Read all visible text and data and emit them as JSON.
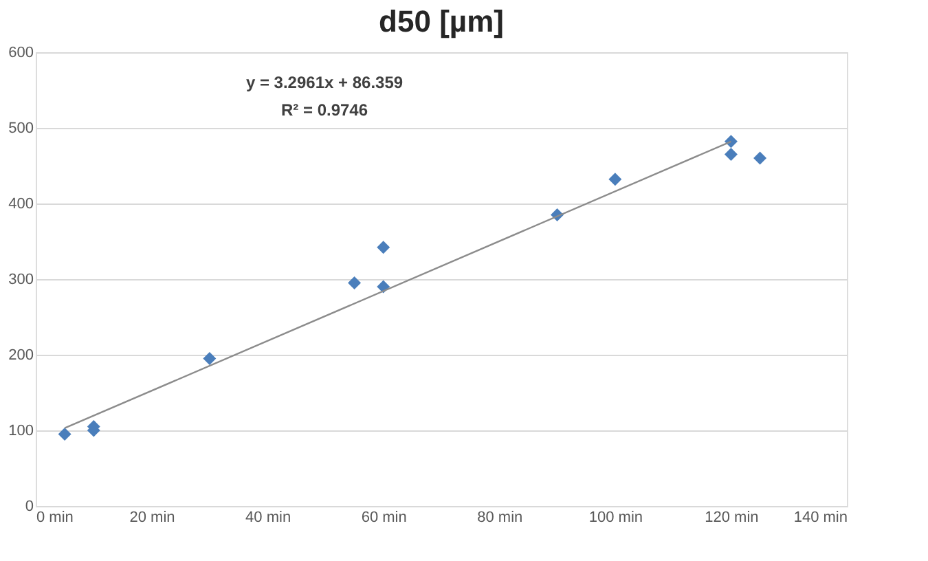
{
  "chart_data": {
    "type": "scatter",
    "title": "d50 [µm]",
    "series": [
      {
        "color": "#4a7ebb",
        "marker": "diamond",
        "x": [
          5,
          10,
          10,
          30,
          55,
          60,
          60,
          90,
          100,
          120,
          120,
          125
        ],
        "values": [
          95,
          100,
          105,
          195,
          295,
          290,
          342,
          385,
          432,
          482,
          465,
          460
        ]
      },
      {
        "type": "line",
        "color": "#8c8c8c",
        "marker": "none",
        "line_style": "solid",
        "x": [
          5,
          120
        ],
        "values": [
          103,
          482
        ]
      }
    ],
    "xlim": [
      0,
      140
    ],
    "xticks": [
      {
        "value": 0,
        "label": "0 min"
      },
      {
        "value": 20,
        "label": "20 min"
      },
      {
        "value": 40,
        "label": "40 min"
      },
      {
        "value": 60,
        "label": "60 min"
      },
      {
        "value": 80,
        "label": "80 min"
      },
      {
        "value": 100,
        "label": "100 min"
      },
      {
        "value": 120,
        "label": "120 min"
      },
      {
        "value": 140,
        "label": "140 min"
      }
    ],
    "ylim": [
      0,
      600
    ],
    "yticks": [
      0,
      100,
      200,
      300,
      400,
      500,
      600
    ],
    "grid": "y",
    "annotations": [
      "y = 3.2961x + 86.359",
      "R² = 0.9746"
    ]
  }
}
